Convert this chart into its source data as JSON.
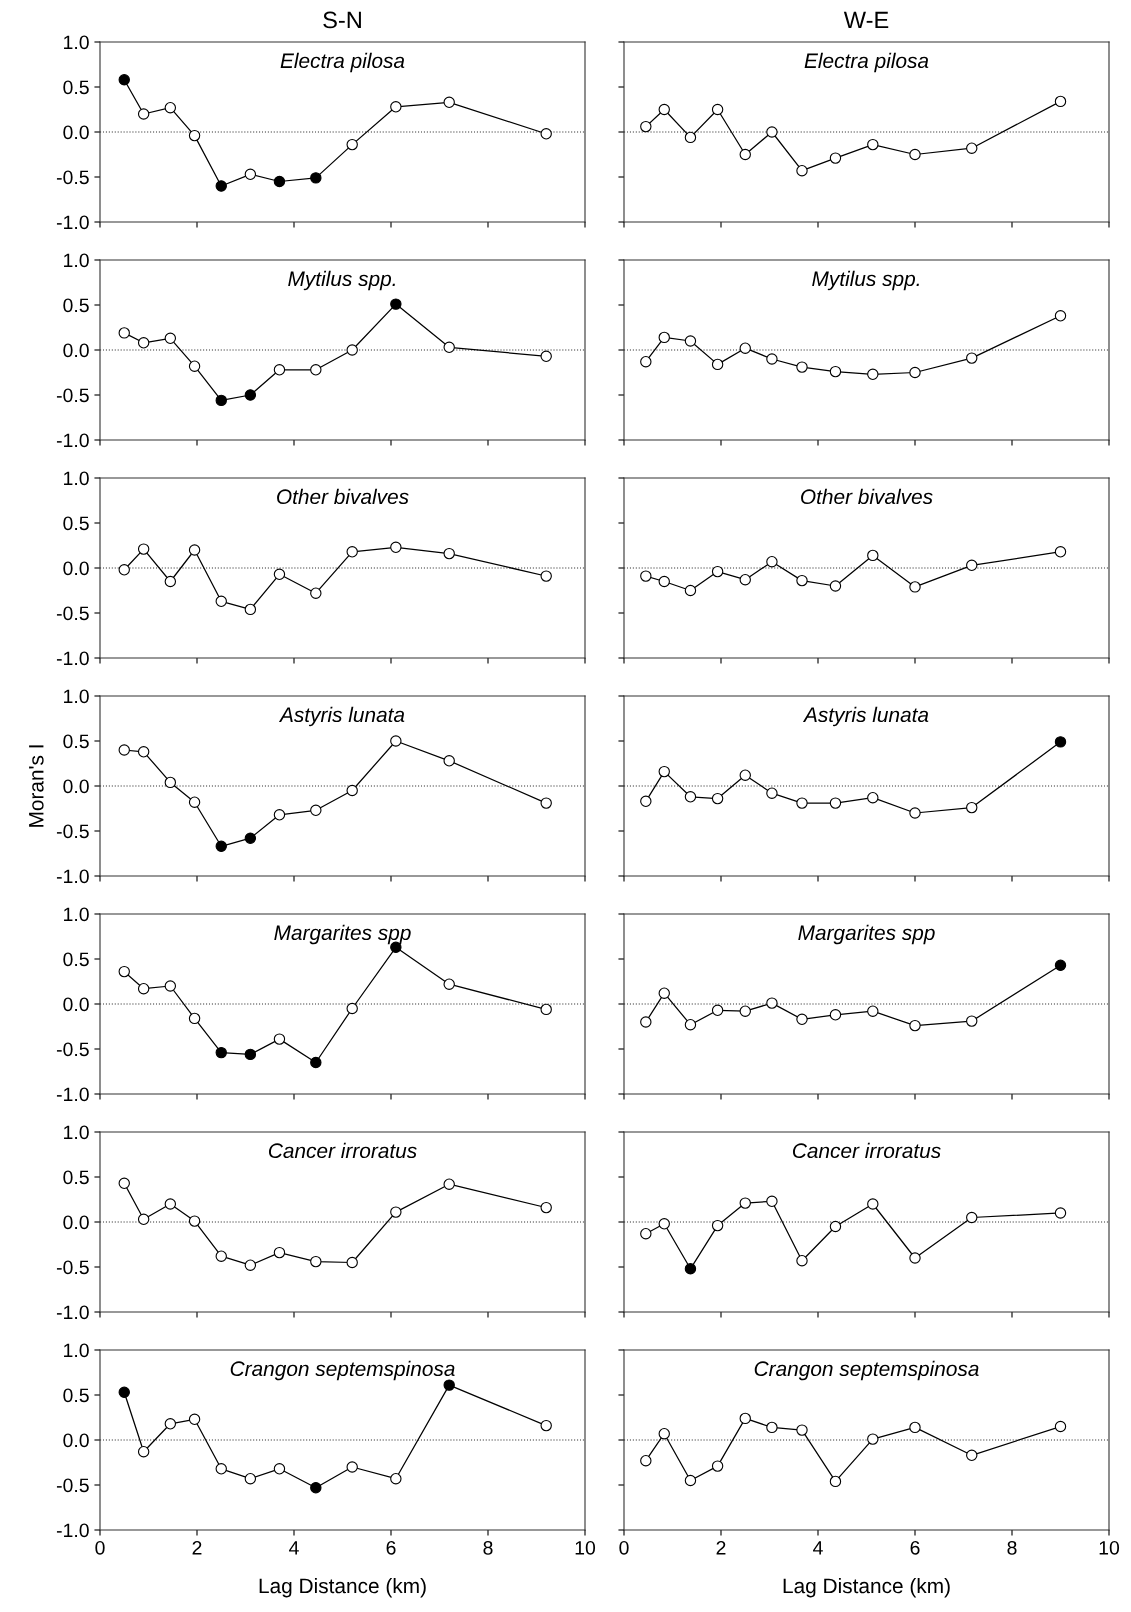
{
  "chart_data": [
    {
      "type": "line",
      "title": "S-N",
      "subtitle": "Electra pilosa",
      "x": [
        0.5,
        0.9,
        1.45,
        1.95,
        2.5,
        3.1,
        3.7,
        4.45,
        5.2,
        6.1,
        7.2,
        9.2
      ],
      "series": [
        {
          "color": "#000000",
          "values": [
            0.58,
            0.2,
            0.27,
            -0.04,
            -0.6,
            -0.47,
            -0.55,
            -0.51,
            -0.14,
            0.28,
            0.33,
            -0.02
          ],
          "colors": [
            "#000000",
            "#ffffff",
            "#ffffff",
            "#ffffff",
            "#000000",
            "#ffffff",
            "#000000",
            "#000000",
            "#ffffff",
            "#ffffff",
            "#ffffff",
            "#ffffff"
          ]
        }
      ],
      "marker": "circle",
      "xlim": [
        0,
        10
      ],
      "ylim": [
        -1,
        1
      ],
      "xticks": [
        0,
        2,
        4,
        6,
        8,
        10
      ],
      "yticks": [
        {
          "value": -1,
          "label": "-1.0"
        },
        {
          "value": -0.5,
          "label": "-0.5"
        },
        {
          "value": 0,
          "label": "0.0"
        },
        {
          "value": 0.5,
          "label": "0.5"
        },
        {
          "value": 1,
          "label": "1.0"
        }
      ],
      "ref_lines": [
        {
          "axis": "y",
          "value": 0,
          "line_style": "dotted"
        }
      ],
      "tick_labels": "y",
      "grid": false,
      "legend": false
    },
    {
      "type": "line",
      "title": "W-E",
      "subtitle": "Electra pilosa",
      "x": [
        0.45,
        0.83,
        1.37,
        1.93,
        2.5,
        3.05,
        3.67,
        4.36,
        5.13,
        6.0,
        7.17,
        9.0
      ],
      "series": [
        {
          "color": "#000000",
          "values": [
            0.06,
            0.25,
            -0.06,
            0.25,
            -0.25,
            0.0,
            -0.43,
            -0.29,
            -0.14,
            -0.25,
            -0.18,
            0.34
          ],
          "colors": [
            "#ffffff",
            "#ffffff",
            "#ffffff",
            "#ffffff",
            "#ffffff",
            "#ffffff",
            "#ffffff",
            "#ffffff",
            "#ffffff",
            "#ffffff",
            "#ffffff",
            "#ffffff"
          ]
        }
      ],
      "marker": "circle",
      "xlim": [
        0,
        10
      ],
      "ylim": [
        -1,
        1
      ],
      "xticks": [
        0,
        2,
        4,
        6,
        8,
        10
      ],
      "yticks": [
        {
          "value": -1,
          "label": null
        },
        {
          "value": -0.5,
          "label": null
        },
        {
          "value": 0,
          "label": null
        },
        {
          "value": 0.5,
          "label": null
        },
        {
          "value": 1,
          "label": null
        }
      ],
      "ref_lines": [
        {
          "axis": "y",
          "value": 0,
          "line_style": "dotted"
        }
      ],
      "tick_labels": false,
      "grid": false,
      "legend": false
    },
    {
      "type": "line",
      "subtitle": "Mytilus spp.",
      "x": [
        0.5,
        0.9,
        1.45,
        1.95,
        2.5,
        3.1,
        3.7,
        4.45,
        5.2,
        6.1,
        7.2,
        9.2
      ],
      "series": [
        {
          "color": "#000000",
          "values": [
            0.19,
            0.08,
            0.13,
            -0.18,
            -0.56,
            -0.5,
            -0.22,
            -0.22,
            0.0,
            0.51,
            0.03,
            -0.07
          ],
          "colors": [
            "#ffffff",
            "#ffffff",
            "#ffffff",
            "#ffffff",
            "#000000",
            "#000000",
            "#ffffff",
            "#ffffff",
            "#ffffff",
            "#000000",
            "#ffffff",
            "#ffffff"
          ]
        }
      ],
      "marker": "circle",
      "xlim": [
        0,
        10
      ],
      "ylim": [
        -1,
        1
      ],
      "xticks": [
        0,
        2,
        4,
        6,
        8,
        10
      ],
      "yticks": [
        {
          "value": -1,
          "label": "-1.0"
        },
        {
          "value": -0.5,
          "label": "-0.5"
        },
        {
          "value": 0,
          "label": "0.0"
        },
        {
          "value": 0.5,
          "label": "0.5"
        },
        {
          "value": 1,
          "label": "1.0"
        }
      ],
      "ref_lines": [
        {
          "axis": "y",
          "value": 0,
          "line_style": "dotted"
        }
      ],
      "tick_labels": "y",
      "grid": false,
      "legend": false
    },
    {
      "type": "line",
      "subtitle": "Mytilus spp.",
      "x": [
        0.45,
        0.83,
        1.37,
        1.93,
        2.5,
        3.05,
        3.67,
        4.36,
        5.13,
        6.0,
        7.17,
        9.0
      ],
      "series": [
        {
          "color": "#000000",
          "values": [
            -0.13,
            0.14,
            0.1,
            -0.16,
            0.02,
            -0.1,
            -0.19,
            -0.24,
            -0.27,
            -0.25,
            -0.09,
            0.38
          ],
          "colors": [
            "#ffffff",
            "#ffffff",
            "#ffffff",
            "#ffffff",
            "#ffffff",
            "#ffffff",
            "#ffffff",
            "#ffffff",
            "#ffffff",
            "#ffffff",
            "#ffffff",
            "#ffffff"
          ]
        }
      ],
      "marker": "circle",
      "xlim": [
        0,
        10
      ],
      "ylim": [
        -1,
        1
      ],
      "xticks": [
        0,
        2,
        4,
        6,
        8,
        10
      ],
      "yticks": [
        {
          "value": -1,
          "label": null
        },
        {
          "value": -0.5,
          "label": null
        },
        {
          "value": 0,
          "label": null
        },
        {
          "value": 0.5,
          "label": null
        },
        {
          "value": 1,
          "label": null
        }
      ],
      "ref_lines": [
        {
          "axis": "y",
          "value": 0,
          "line_style": "dotted"
        }
      ],
      "tick_labels": false,
      "grid": false,
      "legend": false
    },
    {
      "type": "line",
      "subtitle": "Other bivalves",
      "x": [
        0.5,
        0.9,
        1.45,
        1.95,
        2.5,
        3.1,
        3.7,
        4.45,
        5.2,
        6.1,
        7.2,
        9.2
      ],
      "series": [
        {
          "color": "#000000",
          "values": [
            -0.02,
            0.21,
            -0.15,
            0.2,
            -0.37,
            -0.46,
            -0.07,
            -0.28,
            0.18,
            0.23,
            0.16,
            -0.09
          ],
          "colors": [
            "#ffffff",
            "#ffffff",
            "#ffffff",
            "#ffffff",
            "#ffffff",
            "#ffffff",
            "#ffffff",
            "#ffffff",
            "#ffffff",
            "#ffffff",
            "#ffffff",
            "#ffffff"
          ]
        }
      ],
      "marker": "circle",
      "xlim": [
        0,
        10
      ],
      "ylim": [
        -1,
        1
      ],
      "xticks": [
        0,
        2,
        4,
        6,
        8,
        10
      ],
      "yticks": [
        {
          "value": -1,
          "label": "-1.0"
        },
        {
          "value": -0.5,
          "label": "-0.5"
        },
        {
          "value": 0,
          "label": "0.0"
        },
        {
          "value": 0.5,
          "label": "0.5"
        },
        {
          "value": 1,
          "label": "1.0"
        }
      ],
      "ref_lines": [
        {
          "axis": "y",
          "value": 0,
          "line_style": "dotted"
        }
      ],
      "tick_labels": "y",
      "grid": false,
      "legend": false
    },
    {
      "type": "line",
      "subtitle": "Other bivalves",
      "x": [
        0.45,
        0.83,
        1.37,
        1.93,
        2.5,
        3.05,
        3.67,
        4.36,
        5.13,
        6.0,
        7.17,
        9.0
      ],
      "series": [
        {
          "color": "#000000",
          "values": [
            -0.09,
            -0.15,
            -0.25,
            -0.04,
            -0.13,
            0.07,
            -0.14,
            -0.2,
            0.14,
            -0.21,
            0.03,
            0.18
          ],
          "colors": [
            "#ffffff",
            "#ffffff",
            "#ffffff",
            "#ffffff",
            "#ffffff",
            "#ffffff",
            "#ffffff",
            "#ffffff",
            "#ffffff",
            "#ffffff",
            "#ffffff",
            "#ffffff"
          ]
        }
      ],
      "marker": "circle",
      "xlim": [
        0,
        10
      ],
      "ylim": [
        -1,
        1
      ],
      "xticks": [
        0,
        2,
        4,
        6,
        8,
        10
      ],
      "yticks": [
        {
          "value": -1,
          "label": null
        },
        {
          "value": -0.5,
          "label": null
        },
        {
          "value": 0,
          "label": null
        },
        {
          "value": 0.5,
          "label": null
        },
        {
          "value": 1,
          "label": null
        }
      ],
      "ref_lines": [
        {
          "axis": "y",
          "value": 0,
          "line_style": "dotted"
        }
      ],
      "tick_labels": false,
      "grid": false,
      "legend": false
    },
    {
      "type": "line",
      "subtitle": "Astyris lunata",
      "ylabel": "Moran's I",
      "x": [
        0.5,
        0.9,
        1.45,
        1.95,
        2.5,
        3.1,
        3.7,
        4.45,
        5.2,
        6.1,
        7.2,
        9.2
      ],
      "series": [
        {
          "color": "#000000",
          "values": [
            0.4,
            0.38,
            0.04,
            -0.18,
            -0.67,
            -0.58,
            -0.32,
            -0.27,
            -0.05,
            0.5,
            0.28,
            -0.19
          ],
          "colors": [
            "#ffffff",
            "#ffffff",
            "#ffffff",
            "#ffffff",
            "#000000",
            "#000000",
            "#ffffff",
            "#ffffff",
            "#ffffff",
            "#ffffff",
            "#ffffff",
            "#ffffff"
          ]
        }
      ],
      "marker": "circle",
      "xlim": [
        0,
        10
      ],
      "ylim": [
        -1,
        1
      ],
      "xticks": [
        0,
        2,
        4,
        6,
        8,
        10
      ],
      "yticks": [
        {
          "value": -1,
          "label": "-1.0"
        },
        {
          "value": -0.5,
          "label": "-0.5"
        },
        {
          "value": 0,
          "label": "0.0"
        },
        {
          "value": 0.5,
          "label": "0.5"
        },
        {
          "value": 1,
          "label": "1.0"
        }
      ],
      "ref_lines": [
        {
          "axis": "y",
          "value": 0,
          "line_style": "dotted"
        }
      ],
      "tick_labels": "y",
      "grid": false,
      "legend": false
    },
    {
      "type": "line",
      "subtitle": "Astyris lunata",
      "x": [
        0.45,
        0.83,
        1.37,
        1.93,
        2.5,
        3.05,
        3.67,
        4.36,
        5.13,
        6.0,
        7.17,
        9.0
      ],
      "series": [
        {
          "color": "#000000",
          "values": [
            -0.17,
            0.16,
            -0.12,
            -0.14,
            0.12,
            -0.08,
            -0.19,
            -0.19,
            -0.13,
            -0.3,
            -0.24,
            0.49
          ],
          "colors": [
            "#ffffff",
            "#ffffff",
            "#ffffff",
            "#ffffff",
            "#ffffff",
            "#ffffff",
            "#ffffff",
            "#ffffff",
            "#ffffff",
            "#ffffff",
            "#ffffff",
            "#000000"
          ]
        }
      ],
      "marker": "circle",
      "xlim": [
        0,
        10
      ],
      "ylim": [
        -1,
        1
      ],
      "xticks": [
        0,
        2,
        4,
        6,
        8,
        10
      ],
      "yticks": [
        {
          "value": -1,
          "label": null
        },
        {
          "value": -0.5,
          "label": null
        },
        {
          "value": 0,
          "label": null
        },
        {
          "value": 0.5,
          "label": null
        },
        {
          "value": 1,
          "label": null
        }
      ],
      "ref_lines": [
        {
          "axis": "y",
          "value": 0,
          "line_style": "dotted"
        }
      ],
      "tick_labels": false,
      "grid": false,
      "legend": false
    },
    {
      "type": "line",
      "subtitle": "Margarites spp",
      "x": [
        0.5,
        0.9,
        1.45,
        1.95,
        2.5,
        3.1,
        3.7,
        4.45,
        5.2,
        6.1,
        7.2,
        9.2
      ],
      "series": [
        {
          "color": "#000000",
          "values": [
            0.36,
            0.17,
            0.2,
            -0.16,
            -0.54,
            -0.56,
            -0.39,
            -0.65,
            -0.05,
            0.63,
            0.22,
            -0.06
          ],
          "colors": [
            "#ffffff",
            "#ffffff",
            "#ffffff",
            "#ffffff",
            "#000000",
            "#000000",
            "#ffffff",
            "#000000",
            "#ffffff",
            "#000000",
            "#ffffff",
            "#ffffff"
          ]
        }
      ],
      "marker": "circle",
      "xlim": [
        0,
        10
      ],
      "ylim": [
        -1,
        1
      ],
      "xticks": [
        0,
        2,
        4,
        6,
        8,
        10
      ],
      "yticks": [
        {
          "value": -1,
          "label": "-1.0"
        },
        {
          "value": -0.5,
          "label": "-0.5"
        },
        {
          "value": 0,
          "label": "0.0"
        },
        {
          "value": 0.5,
          "label": "0.5"
        },
        {
          "value": 1,
          "label": "1.0"
        }
      ],
      "ref_lines": [
        {
          "axis": "y",
          "value": 0,
          "line_style": "dotted"
        }
      ],
      "tick_labels": "y",
      "grid": false,
      "legend": false
    },
    {
      "type": "line",
      "subtitle": "Margarites spp",
      "x": [
        0.45,
        0.83,
        1.37,
        1.93,
        2.5,
        3.05,
        3.67,
        4.36,
        5.13,
        6.0,
        7.17,
        9.0
      ],
      "series": [
        {
          "color": "#000000",
          "values": [
            -0.2,
            0.12,
            -0.23,
            -0.07,
            -0.08,
            0.01,
            -0.17,
            -0.12,
            -0.08,
            -0.24,
            -0.19,
            0.43
          ],
          "colors": [
            "#ffffff",
            "#ffffff",
            "#ffffff",
            "#ffffff",
            "#ffffff",
            "#ffffff",
            "#ffffff",
            "#ffffff",
            "#ffffff",
            "#ffffff",
            "#ffffff",
            "#000000"
          ]
        }
      ],
      "marker": "circle",
      "xlim": [
        0,
        10
      ],
      "ylim": [
        -1,
        1
      ],
      "xticks": [
        0,
        2,
        4,
        6,
        8,
        10
      ],
      "yticks": [
        {
          "value": -1,
          "label": null
        },
        {
          "value": -0.5,
          "label": null
        },
        {
          "value": 0,
          "label": null
        },
        {
          "value": 0.5,
          "label": null
        },
        {
          "value": 1,
          "label": null
        }
      ],
      "ref_lines": [
        {
          "axis": "y",
          "value": 0,
          "line_style": "dotted"
        }
      ],
      "tick_labels": false,
      "grid": false,
      "legend": false
    },
    {
      "type": "line",
      "subtitle": "Cancer irroratus",
      "x": [
        0.5,
        0.9,
        1.45,
        1.95,
        2.5,
        3.1,
        3.7,
        4.45,
        5.2,
        6.1,
        7.2,
        9.2
      ],
      "series": [
        {
          "color": "#000000",
          "values": [
            0.43,
            0.03,
            0.2,
            0.01,
            -0.38,
            -0.48,
            -0.34,
            -0.44,
            -0.45,
            0.11,
            0.42,
            0.16
          ],
          "colors": [
            "#ffffff",
            "#ffffff",
            "#ffffff",
            "#ffffff",
            "#ffffff",
            "#ffffff",
            "#ffffff",
            "#ffffff",
            "#ffffff",
            "#ffffff",
            "#ffffff",
            "#ffffff"
          ]
        }
      ],
      "marker": "circle",
      "xlim": [
        0,
        10
      ],
      "ylim": [
        -1,
        1
      ],
      "xticks": [
        0,
        2,
        4,
        6,
        8,
        10
      ],
      "yticks": [
        {
          "value": -1,
          "label": "-1.0"
        },
        {
          "value": -0.5,
          "label": "-0.5"
        },
        {
          "value": 0,
          "label": "0.0"
        },
        {
          "value": 0.5,
          "label": "0.5"
        },
        {
          "value": 1,
          "label": "1.0"
        }
      ],
      "ref_lines": [
        {
          "axis": "y",
          "value": 0,
          "line_style": "dotted"
        }
      ],
      "tick_labels": "y",
      "grid": false,
      "legend": false
    },
    {
      "type": "line",
      "subtitle": "Cancer irroratus",
      "x": [
        0.45,
        0.83,
        1.37,
        1.93,
        2.5,
        3.05,
        3.67,
        4.36,
        5.13,
        6.0,
        7.17,
        9.0
      ],
      "series": [
        {
          "color": "#000000",
          "values": [
            -0.13,
            -0.02,
            -0.52,
            -0.04,
            0.21,
            0.23,
            -0.43,
            -0.05,
            0.2,
            -0.4,
            0.05,
            0.1
          ],
          "colors": [
            "#ffffff",
            "#ffffff",
            "#000000",
            "#ffffff",
            "#ffffff",
            "#ffffff",
            "#ffffff",
            "#ffffff",
            "#ffffff",
            "#ffffff",
            "#ffffff",
            "#ffffff"
          ]
        }
      ],
      "marker": "circle",
      "xlim": [
        0,
        10
      ],
      "ylim": [
        -1,
        1
      ],
      "xticks": [
        0,
        2,
        4,
        6,
        8,
        10
      ],
      "yticks": [
        {
          "value": -1,
          "label": null
        },
        {
          "value": -0.5,
          "label": null
        },
        {
          "value": 0,
          "label": null
        },
        {
          "value": 0.5,
          "label": null
        },
        {
          "value": 1,
          "label": null
        }
      ],
      "ref_lines": [
        {
          "axis": "y",
          "value": 0,
          "line_style": "dotted"
        }
      ],
      "tick_labels": false,
      "grid": false,
      "legend": false
    },
    {
      "type": "line",
      "subtitle": "Crangon septemspinosa",
      "xlabel": "Lag Distance (km)",
      "x": [
        0.5,
        0.9,
        1.45,
        1.95,
        2.5,
        3.1,
        3.7,
        4.45,
        5.2,
        6.1,
        7.2,
        9.2
      ],
      "series": [
        {
          "color": "#000000",
          "values": [
            0.53,
            -0.13,
            0.18,
            0.23,
            -0.32,
            -0.43,
            -0.32,
            -0.53,
            -0.3,
            -0.43,
            0.61,
            0.16
          ],
          "colors": [
            "#000000",
            "#ffffff",
            "#ffffff",
            "#ffffff",
            "#ffffff",
            "#ffffff",
            "#ffffff",
            "#000000",
            "#ffffff",
            "#ffffff",
            "#000000",
            "#ffffff"
          ]
        }
      ],
      "marker": "circle",
      "xlim": [
        0,
        10
      ],
      "ylim": [
        -1,
        1
      ],
      "xticks": [
        0,
        2,
        4,
        6,
        8,
        10
      ],
      "yticks": [
        {
          "value": -1,
          "label": "-1.0"
        },
        {
          "value": -0.5,
          "label": "-0.5"
        },
        {
          "value": 0,
          "label": "0.0"
        },
        {
          "value": 0.5,
          "label": "0.5"
        },
        {
          "value": 1,
          "label": "1.0"
        }
      ],
      "ref_lines": [
        {
          "axis": "y",
          "value": 0,
          "line_style": "dotted"
        }
      ],
      "grid": false,
      "legend": false
    },
    {
      "type": "line",
      "subtitle": "Crangon septemspinosa",
      "xlabel": "Lag Distance (km)",
      "x": [
        0.45,
        0.83,
        1.37,
        1.93,
        2.5,
        3.05,
        3.67,
        4.36,
        5.13,
        6.0,
        7.17,
        9.0
      ],
      "series": [
        {
          "color": "#000000",
          "values": [
            -0.23,
            0.07,
            -0.45,
            -0.29,
            0.24,
            0.14,
            0.11,
            -0.46,
            0.01,
            0.14,
            -0.17,
            0.15
          ],
          "colors": [
            "#ffffff",
            "#ffffff",
            "#ffffff",
            "#ffffff",
            "#ffffff",
            "#ffffff",
            "#ffffff",
            "#ffffff",
            "#ffffff",
            "#ffffff",
            "#ffffff",
            "#ffffff"
          ]
        }
      ],
      "marker": "circle",
      "xlim": [
        0,
        10
      ],
      "ylim": [
        -1,
        1
      ],
      "xticks": [
        0,
        2,
        4,
        6,
        8,
        10
      ],
      "yticks": [
        {
          "value": -1,
          "label": null
        },
        {
          "value": -0.5,
          "label": null
        },
        {
          "value": 0,
          "label": null
        },
        {
          "value": 0.5,
          "label": null
        },
        {
          "value": 1,
          "label": null
        }
      ],
      "ref_lines": [
        {
          "axis": "y",
          "value": 0,
          "line_style": "dotted"
        }
      ],
      "tick_labels": "x",
      "grid": false,
      "legend": false
    }
  ]
}
